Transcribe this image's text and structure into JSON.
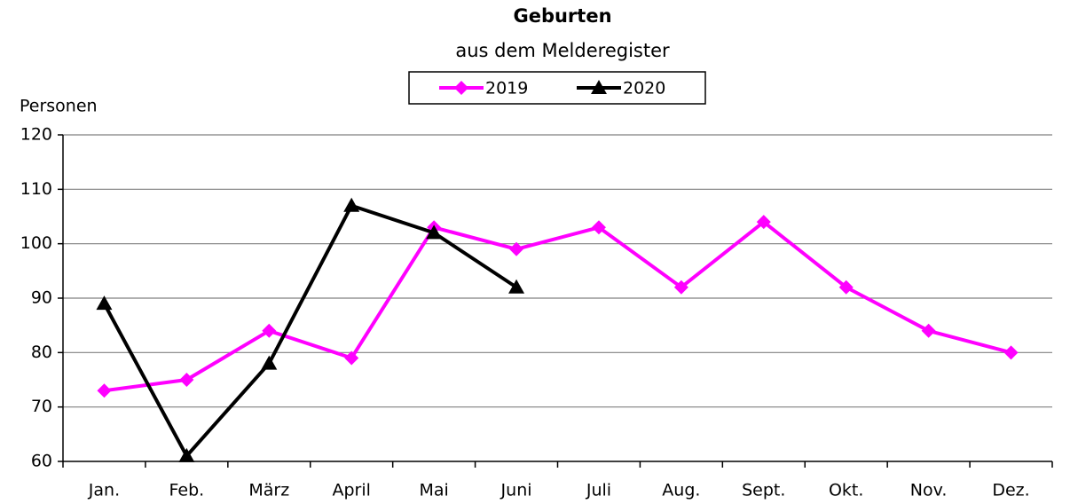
{
  "chart_data": {
    "type": "line",
    "title": "Geburten",
    "subtitle": "aus dem Melderegister",
    "y_label": "Personen",
    "categories": [
      "Jan.",
      "Feb.",
      "März",
      "April",
      "Mai",
      "Juni",
      "Juli",
      "Aug.",
      "Sept.",
      "Okt.",
      "Nov.",
      "Dez."
    ],
    "series": [
      {
        "name": "2019",
        "color": "#ff00ff",
        "marker": "diamond",
        "values": [
          73,
          75,
          84,
          79,
          103,
          99,
          103,
          92,
          104,
          92,
          84,
          80
        ]
      },
      {
        "name": "2020",
        "color": "#000000",
        "marker": "triangle",
        "values": [
          89,
          61,
          78,
          107,
          102,
          92,
          null,
          null,
          null,
          null,
          null,
          null
        ]
      }
    ],
    "ylim": [
      60,
      120
    ],
    "yticks": [
      60,
      70,
      80,
      90,
      100,
      110,
      120
    ],
    "grid": true,
    "legend": "top"
  }
}
